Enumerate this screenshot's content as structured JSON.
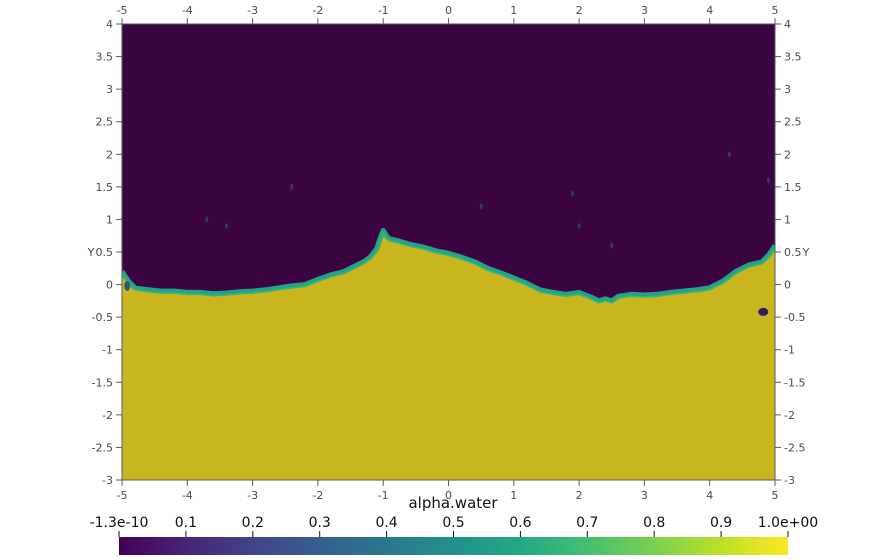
{
  "chart_data": {
    "type": "heatmap",
    "title": "",
    "field": "alpha.water",
    "xlim": [
      -5,
      5
    ],
    "ylim": [
      -3,
      4
    ],
    "x_ticks": [
      "-5",
      "-4",
      "-3",
      "-2",
      "-1",
      "0",
      "1",
      "2",
      "3",
      "4",
      "5"
    ],
    "x_tick_values": [
      -5,
      -4,
      -3,
      -2,
      -1,
      0,
      1,
      2,
      3,
      4,
      5
    ],
    "y_ticks": [
      "-3",
      "-2.5",
      "-2",
      "-1.5",
      "-1",
      "-0.5",
      "0",
      "0.5",
      "1",
      "1.5",
      "2",
      "2.5",
      "3",
      "3.5",
      "4"
    ],
    "y_tick_values": [
      -3,
      -2.5,
      -2,
      -1.5,
      -1,
      -0.5,
      0,
      0.5,
      1,
      1.5,
      2,
      2.5,
      3,
      3.5,
      4
    ],
    "ylabel": "Y",
    "colorbar": {
      "title": "alpha.water",
      "ticks": [
        "-1.3e-10",
        "0.1",
        "0.2",
        "0.3",
        "0.4",
        "0.5",
        "0.6",
        "0.7",
        "0.8",
        "0.9",
        "1.0e+00"
      ],
      "tick_values": [
        0,
        0.1,
        0.2,
        0.3,
        0.4,
        0.5,
        0.6,
        0.7,
        0.8,
        0.9,
        1.0
      ],
      "range": [
        -1.3e-10,
        1.0
      ],
      "colormap": "viridis",
      "placement": "bottom"
    },
    "interface": {
      "x": [
        -5,
        -4.9,
        -4.8,
        -4.6,
        -4.4,
        -4.2,
        -4.0,
        -3.8,
        -3.6,
        -3.4,
        -3.2,
        -3.0,
        -2.8,
        -2.6,
        -2.4,
        -2.2,
        -2.0,
        -1.8,
        -1.6,
        -1.5,
        -1.4,
        -1.3,
        -1.2,
        -1.1,
        -1.05,
        -1.0,
        -0.95,
        -0.9,
        -0.8,
        -0.6,
        -0.4,
        -0.2,
        0.0,
        0.2,
        0.4,
        0.6,
        0.8,
        1.0,
        1.2,
        1.4,
        1.6,
        1.8,
        2.0,
        2.2,
        2.3,
        2.4,
        2.5,
        2.6,
        2.8,
        3.0,
        3.2,
        3.4,
        3.6,
        3.8,
        4.0,
        4.2,
        4.4,
        4.6,
        4.8,
        4.9,
        5.0
      ],
      "y": [
        0.2,
        0.05,
        -0.05,
        -0.08,
        -0.1,
        -0.1,
        -0.12,
        -0.12,
        -0.14,
        -0.13,
        -0.11,
        -0.1,
        -0.08,
        -0.05,
        -0.02,
        0.0,
        0.08,
        0.15,
        0.2,
        0.25,
        0.3,
        0.35,
        0.42,
        0.55,
        0.7,
        0.83,
        0.75,
        0.7,
        0.68,
        0.62,
        0.58,
        0.52,
        0.48,
        0.42,
        0.35,
        0.25,
        0.18,
        0.1,
        0.02,
        -0.08,
        -0.12,
        -0.15,
        -0.12,
        -0.2,
        -0.25,
        -0.22,
        -0.25,
        -0.18,
        -0.15,
        -0.16,
        -0.15,
        -0.12,
        -0.1,
        -0.08,
        -0.05,
        0.05,
        0.2,
        0.3,
        0.35,
        0.45,
        0.6
      ]
    },
    "values_below_interface": 0.9,
    "values_above_interface": 0.0,
    "grid": false
  },
  "colors": {
    "air": "#3b0544",
    "water": "#c9b61e",
    "interface_mid": "#26a386",
    "interface_edge": "#35b779",
    "axis": "#5a5a5a",
    "background": "#ffffff"
  }
}
